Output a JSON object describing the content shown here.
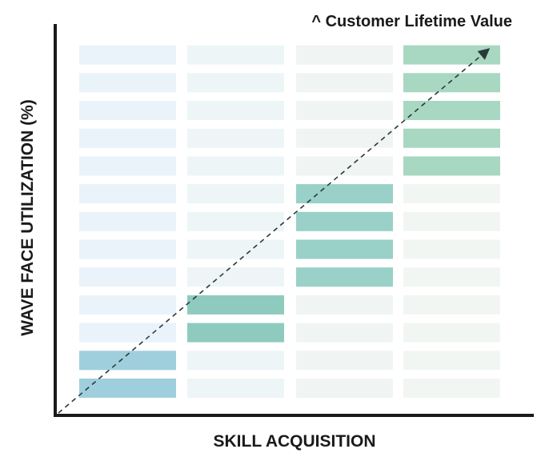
{
  "annotation": "^ Customer Lifetime Value",
  "x_axis_label": "SKILL ACQUISITION",
  "y_axis_label": "WAVE FACE UTILIZATION (%)",
  "colors": {
    "axis": "#1a1a1a",
    "arrow": "#2a3a3a",
    "columns": [
      {
        "active": "#9fcfdc",
        "inactive": "#eaf3fa"
      },
      {
        "active": "#8ecbbe",
        "inactive": "#edf5f7"
      },
      {
        "active": "#99d0c8",
        "inactive": "#f0f4f2"
      },
      {
        "active": "#a8d7c2",
        "inactive": "#f2f6f3"
      }
    ]
  },
  "columns": [
    {
      "levels": 13,
      "filled": 2
    },
    {
      "levels": 13,
      "filled": 4
    },
    {
      "levels": 13,
      "filled": 8
    },
    {
      "levels": 13,
      "filled": 13
    }
  ],
  "active_ranges": [
    [
      1,
      2
    ],
    [
      3,
      4
    ],
    [
      5,
      8
    ],
    [
      9,
      13
    ]
  ]
}
